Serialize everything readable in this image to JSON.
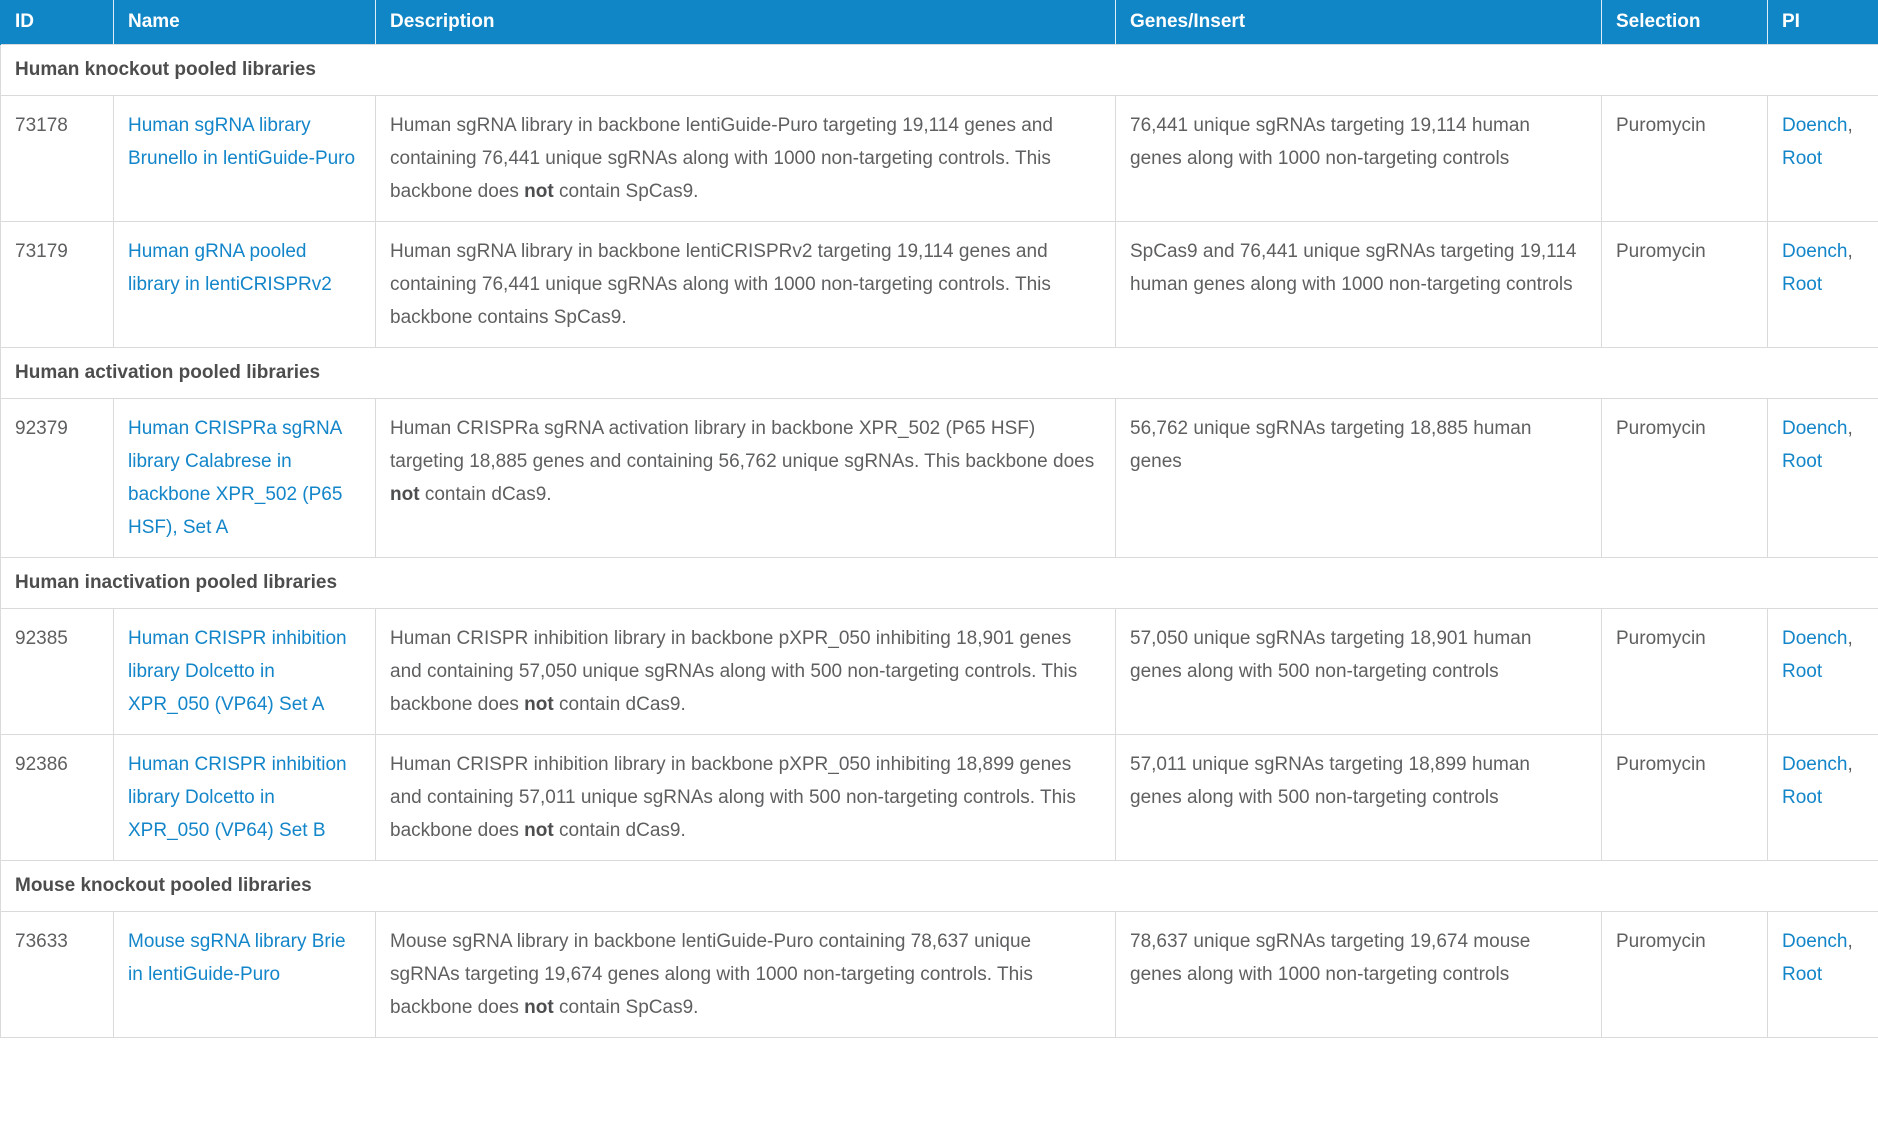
{
  "theme": {
    "header_bg": "#1186c6",
    "link_color": "#1385c9",
    "body_text": "#5e5f61",
    "section_text": "#4d4d4d",
    "border_color": "#d9dadb"
  },
  "table": {
    "columns": [
      {
        "key": "id",
        "label": "ID"
      },
      {
        "key": "name",
        "label": "Name"
      },
      {
        "key": "description",
        "label": "Description"
      },
      {
        "key": "genes_insert",
        "label": "Genes/Insert"
      },
      {
        "key": "selection",
        "label": "Selection"
      },
      {
        "key": "pi",
        "label": "PI"
      }
    ],
    "sections": [
      {
        "title": "Human knockout pooled libraries",
        "rows": [
          {
            "id": "73178",
            "name": "Human sgRNA library Brunello in lentiGuide-Puro",
            "description": [
              {
                "text": "Human sgRNA library in backbone lentiGuide-Puro targeting 19,114 genes and containing 76,441 unique sgRNAs along with 1000 non-targeting controls. This backbone does ",
                "bold": false
              },
              {
                "text": "not",
                "bold": true
              },
              {
                "text": " contain SpCas9.",
                "bold": false
              }
            ],
            "genes_insert": "76,441 unique sgRNAs targeting 19,114 human genes along with 1000 non-targeting controls",
            "selection": "Puromycin",
            "pi": [
              "Doench",
              "Root"
            ]
          },
          {
            "id": "73179",
            "name": "Human gRNA pooled library in lentiCRISPRv2",
            "description": [
              {
                "text": "Human sgRNA library in backbone lentiCRISPRv2 targeting 19,114 genes and containing 76,441 unique sgRNAs along with 1000 non-targeting controls. This backbone contains SpCas9.",
                "bold": false
              }
            ],
            "genes_insert": "SpCas9 and 76,441 unique sgRNAs targeting 19,114 human genes along with 1000 non-targeting controls",
            "selection": "Puromycin",
            "pi": [
              "Doench",
              "Root"
            ]
          }
        ]
      },
      {
        "title": "Human activation pooled libraries",
        "rows": [
          {
            "id": "92379",
            "name": "Human CRISPRa sgRNA library Calabrese in backbone XPR_502 (P65 HSF), Set A",
            "description": [
              {
                "text": "Human CRISPRa sgRNA activation library in backbone XPR_502 (P65 HSF) targeting 18,885 genes and containing 56,762 unique sgRNAs. This backbone does ",
                "bold": false
              },
              {
                "text": "not",
                "bold": true
              },
              {
                "text": " contain dCas9.",
                "bold": false
              }
            ],
            "genes_insert": "56,762 unique sgRNAs targeting 18,885 human genes",
            "selection": "Puromycin",
            "pi": [
              "Doench",
              "Root"
            ]
          }
        ]
      },
      {
        "title": "Human inactivation pooled libraries",
        "rows": [
          {
            "id": "92385",
            "name": "Human CRISPR inhibition library Dolcetto in XPR_050 (VP64) Set A",
            "description": [
              {
                "text": "Human CRISPR inhibition library in backbone pXPR_050 inhibiting 18,901 genes and containing 57,050 unique sgRNAs along with 500 non-targeting controls. This backbone does ",
                "bold": false
              },
              {
                "text": "not",
                "bold": true
              },
              {
                "text": " contain dCas9.",
                "bold": false
              }
            ],
            "genes_insert": "57,050 unique sgRNAs targeting 18,901 human genes along with 500 non-targeting controls",
            "selection": "Puromycin",
            "pi": [
              "Doench",
              "Root"
            ]
          },
          {
            "id": "92386",
            "name": "Human CRISPR inhibition library Dolcetto in XPR_050 (VP64) Set B",
            "description": [
              {
                "text": "Human CRISPR inhibition library in backbone pXPR_050 inhibiting 18,899 genes and containing 57,011 unique sgRNAs along with 500 non-targeting controls. This backbone does ",
                "bold": false
              },
              {
                "text": "not",
                "bold": true
              },
              {
                "text": " contain dCas9.",
                "bold": false
              }
            ],
            "genes_insert": "57,011 unique sgRNAs targeting 18,899 human genes along with 500 non-targeting controls",
            "selection": "Puromycin",
            "pi": [
              "Doench",
              "Root"
            ]
          }
        ]
      },
      {
        "title": "Mouse knockout pooled libraries",
        "rows": [
          {
            "id": "73633",
            "name": "Mouse sgRNA library Brie in lentiGuide-Puro",
            "description": [
              {
                "text": "Mouse sgRNA library in backbone lentiGuide-Puro containing 78,637 unique sgRNAs targeting 19,674 genes along with 1000 non-targeting controls. This backbone does ",
                "bold": false
              },
              {
                "text": "not",
                "bold": true
              },
              {
                "text": " contain SpCas9.",
                "bold": false
              }
            ],
            "genes_insert": "78,637 unique sgRNAs targeting 19,674 mouse genes along with 1000 non-targeting controls",
            "selection": "Puromycin",
            "pi": [
              "Doench",
              "Root"
            ]
          }
        ]
      }
    ]
  }
}
